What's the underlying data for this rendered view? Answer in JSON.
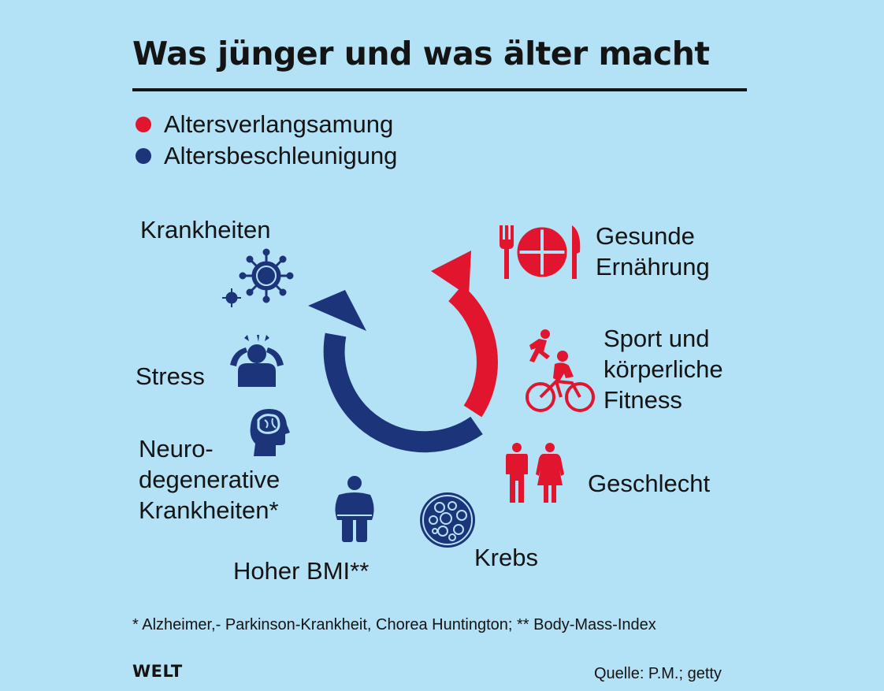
{
  "title": "Was jünger und was älter macht",
  "legend": [
    {
      "label": "Altersverlangsamung",
      "color": "#e2152f"
    },
    {
      "label": "Altersbeschleunigung",
      "color": "#1c347a"
    }
  ],
  "factors_slowing": [
    {
      "lines": [
        "Gesunde",
        "Ernährung"
      ],
      "icon": "fork-plate-knife-icon"
    },
    {
      "lines": [
        "Sport und",
        "körperliche",
        "Fitness"
      ],
      "icon": "runner-cyclist-icon"
    },
    {
      "lines": [
        "Geschlecht"
      ],
      "icon": "man-woman-icon"
    }
  ],
  "factors_accelerating": [
    {
      "lines": [
        "Krankheiten"
      ],
      "icon": "virus-icon"
    },
    {
      "lines": [
        "Stress"
      ],
      "icon": "stressed-person-icon"
    },
    {
      "lines": [
        "Neuro-",
        "degenerative",
        "Krankheiten*"
      ],
      "icon": "brain-head-icon"
    },
    {
      "lines": [
        "Hoher BMI**"
      ],
      "icon": "overweight-person-icon"
    },
    {
      "lines": [
        "Krebs"
      ],
      "icon": "cancer-cell-icon"
    }
  ],
  "footnote": "* Alzheimer,- Parkinson-Krankheit, Chorea Huntington; ** Body-Mass-Index",
  "brand": "WELT",
  "source": "Quelle: P.M.; getty"
}
